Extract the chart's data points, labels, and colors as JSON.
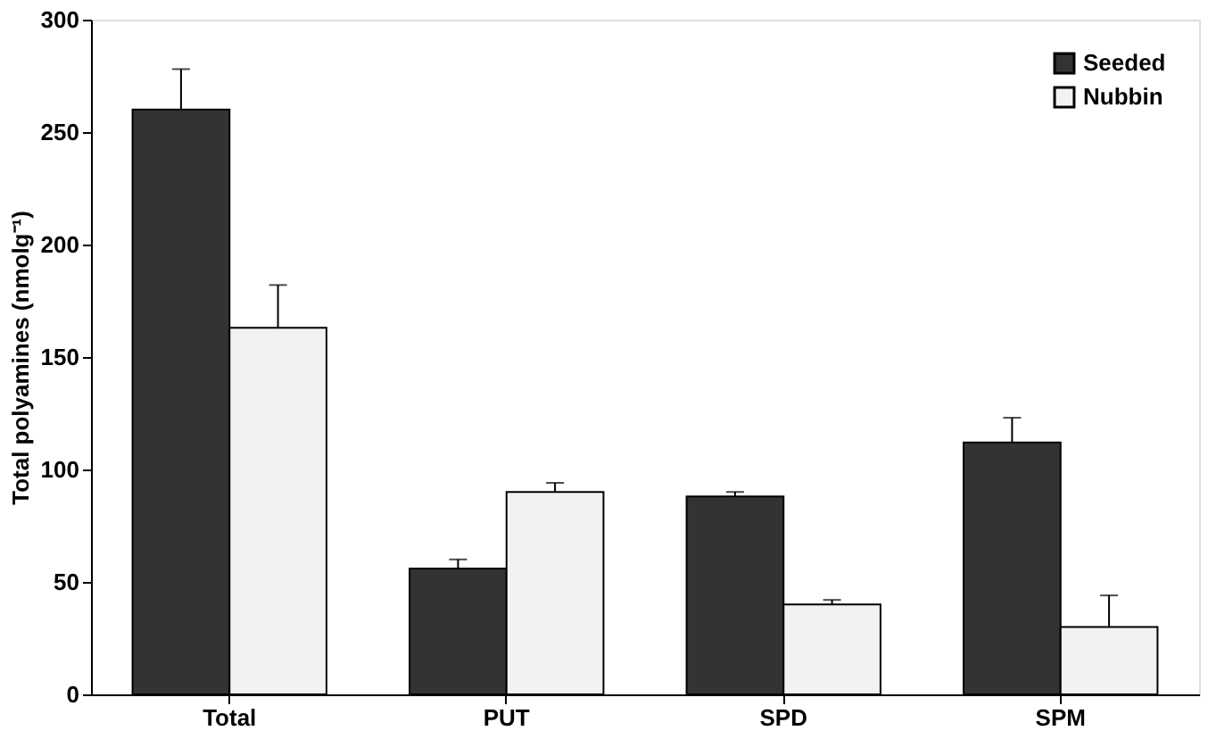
{
  "chart_data": {
    "type": "bar",
    "ylabel": "Total polyamines (nmolg⁻¹)",
    "categories": [
      "Total",
      "PUT",
      "SPD",
      "SPM"
    ],
    "series": [
      {
        "name": "Seeded",
        "color": "#333333",
        "values": [
          260,
          56,
          88,
          112
        ],
        "errors": [
          [
            260,
            278
          ],
          [
            56,
            60
          ],
          [
            88,
            90
          ],
          [
            112,
            123
          ]
        ]
      },
      {
        "name": "Nubbin",
        "color": "#f2f2f2",
        "values": [
          163,
          90,
          40,
          30
        ],
        "errors": [
          [
            163,
            182
          ],
          [
            90,
            94
          ],
          [
            40,
            42
          ],
          [
            30,
            44
          ]
        ]
      }
    ],
    "ylim": [
      0,
      300
    ],
    "yticks": [
      0,
      50,
      100,
      150,
      200,
      250,
      300
    ],
    "grid": false,
    "legend": "top right"
  }
}
